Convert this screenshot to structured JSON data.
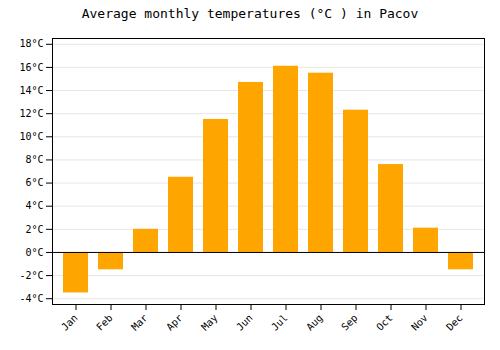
{
  "chart_data": {
    "type": "bar",
    "title": "Average monthly temperatures (°C ) in Pacov",
    "categories": [
      "Jan",
      "Feb",
      "Mar",
      "Apr",
      "May",
      "Jun",
      "Jul",
      "Aug",
      "Sep",
      "Oct",
      "Nov",
      "Dec"
    ],
    "values": [
      -3.5,
      -1.5,
      2.0,
      6.5,
      11.5,
      14.7,
      16.1,
      15.5,
      12.3,
      7.6,
      2.1,
      -1.5
    ],
    "color": "#FFA500",
    "ylim": [
      -4.5,
      18.5
    ],
    "yticks": [
      {
        "value": -4,
        "label": "-4°C"
      },
      {
        "value": -2,
        "label": "-2°C"
      },
      {
        "value": 0,
        "label": "0°C"
      },
      {
        "value": 2,
        "label": "2°C"
      },
      {
        "value": 4,
        "label": "4°C"
      },
      {
        "value": 6,
        "label": "6°C"
      },
      {
        "value": 8,
        "label": "8°C"
      },
      {
        "value": 10,
        "label": "10°C"
      },
      {
        "value": 12,
        "label": "12°C"
      },
      {
        "value": 14,
        "label": "14°C"
      },
      {
        "value": 16,
        "label": "16°C"
      },
      {
        "value": 18,
        "label": "18°C"
      }
    ],
    "grid": true
  }
}
